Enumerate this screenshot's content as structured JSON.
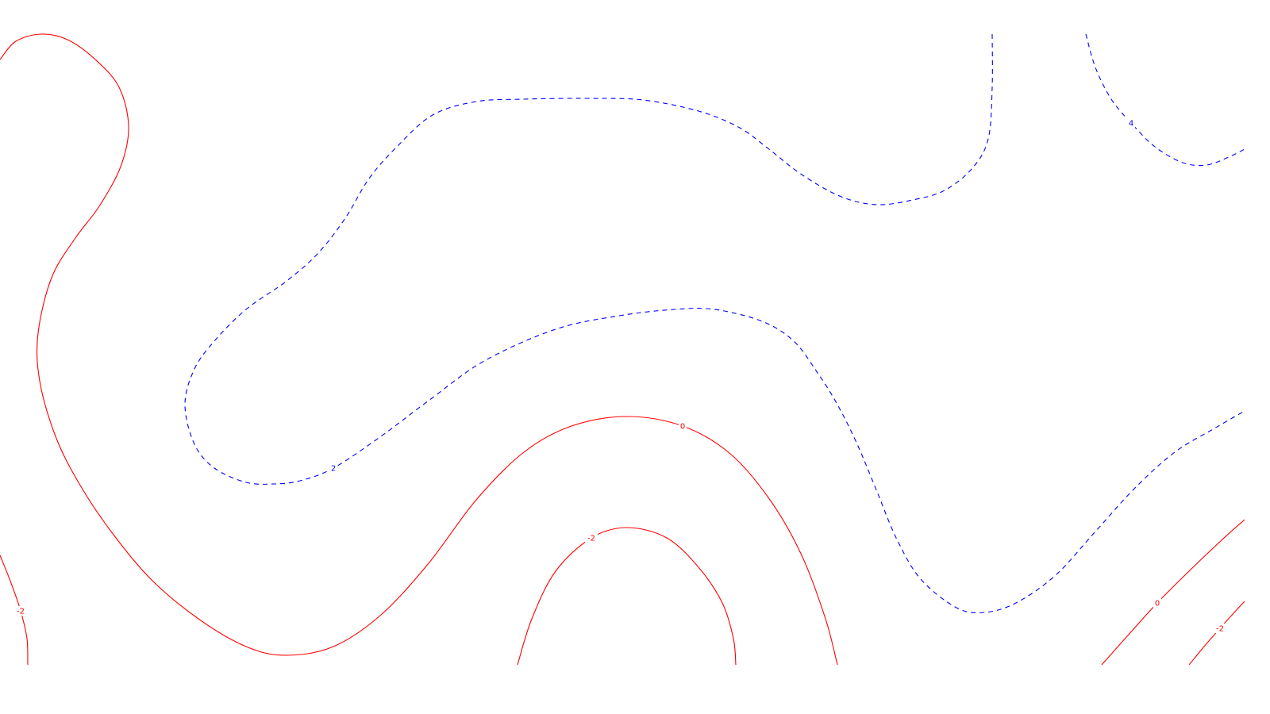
{
  "chart_data": {
    "type": "contour",
    "title": "",
    "xlabel": "",
    "ylabel": "",
    "grid": false,
    "legend": "none",
    "colors": {
      "positive": "#0000ff",
      "negative": "#ff0000"
    },
    "contours": [
      {
        "id": "red-left-0",
        "level": 0,
        "style": "solid",
        "color": "#ff0000",
        "points": [
          [
            0,
            75
          ],
          [
            20,
            52
          ],
          [
            52,
            43
          ],
          [
            85,
            50
          ],
          [
            120,
            75
          ],
          [
            150,
            110
          ],
          [
            162,
            160
          ],
          [
            152,
            210
          ],
          [
            125,
            260
          ],
          [
            95,
            300
          ],
          [
            65,
            350
          ],
          [
            48,
            420
          ],
          [
            50,
            480
          ],
          [
            70,
            550
          ],
          [
            100,
            610
          ],
          [
            140,
            670
          ],
          [
            190,
            730
          ],
          [
            250,
            780
          ],
          [
            310,
            815
          ],
          [
            360,
            826
          ],
          [
            420,
            815
          ],
          [
            480,
            775
          ],
          [
            540,
            710
          ],
          [
            600,
            630
          ],
          [
            660,
            570
          ],
          [
            720,
            537
          ],
          [
            790,
            525
          ],
          [
            860,
            537
          ],
          [
            920,
            572
          ],
          [
            970,
            630
          ],
          [
            1010,
            700
          ],
          [
            1040,
            780
          ],
          [
            1055,
            838
          ]
        ],
        "labels": [
          {
            "text": "0",
            "at": 27
          }
        ]
      },
      {
        "id": "red-left-edge-neg2",
        "level": -2,
        "style": "solid",
        "color": "#ff0000",
        "points": [
          [
            0,
            700
          ],
          [
            14,
            735
          ],
          [
            26,
            770
          ],
          [
            34,
            805
          ],
          [
            35,
            838
          ]
        ],
        "labels": [
          {
            "text": "-2",
            "at": 2
          }
        ]
      },
      {
        "id": "red-bottom-neg2",
        "level": -2,
        "style": "solid",
        "color": "#ff0000",
        "points": [
          [
            652,
            838
          ],
          [
            670,
            780
          ],
          [
            700,
            720
          ],
          [
            745,
            678
          ],
          [
            790,
            665
          ],
          [
            840,
            678
          ],
          [
            880,
            715
          ],
          [
            910,
            760
          ],
          [
            924,
            805
          ],
          [
            927,
            838
          ]
        ],
        "labels": [
          {
            "text": "-2",
            "at": 3
          }
        ]
      },
      {
        "id": "red-right-0",
        "level": 0,
        "style": "solid",
        "color": "#ff0000",
        "points": [
          [
            1388,
            838
          ],
          [
            1420,
            802
          ],
          [
            1458,
            760
          ],
          [
            1500,
            718
          ],
          [
            1540,
            680
          ],
          [
            1568,
            655
          ]
        ],
        "labels": [
          {
            "text": "0",
            "at": 2
          }
        ]
      },
      {
        "id": "red-right-neg2",
        "level": -2,
        "style": "solid",
        "color": "#ff0000",
        "points": [
          [
            1498,
            838
          ],
          [
            1517,
            815
          ],
          [
            1537,
            792
          ],
          [
            1555,
            772
          ],
          [
            1568,
            758
          ]
        ],
        "labels": [
          {
            "text": "-2",
            "at": 2
          }
        ]
      },
      {
        "id": "blue-upper-2",
        "level": 2,
        "style": "dashed",
        "color": "#0000ff",
        "points": [
          [
            1250,
            43
          ],
          [
            1250,
            110
          ],
          [
            1245,
            175
          ],
          [
            1225,
            212
          ],
          [
            1190,
            240
          ],
          [
            1150,
            252
          ],
          [
            1105,
            258
          ],
          [
            1060,
            248
          ],
          [
            1010,
            220
          ],
          [
            965,
            185
          ],
          [
            930,
            160
          ],
          [
            880,
            140
          ],
          [
            810,
            126
          ],
          [
            740,
            124
          ],
          [
            660,
            125
          ],
          [
            600,
            128
          ],
          [
            545,
            145
          ],
          [
            500,
            185
          ],
          [
            465,
            225
          ],
          [
            435,
            275
          ],
          [
            400,
            320
          ],
          [
            360,
            355
          ],
          [
            310,
            390
          ],
          [
            270,
            430
          ],
          [
            245,
            465
          ],
          [
            233,
            510
          ],
          [
            245,
            560
          ],
          [
            270,
            590
          ],
          [
            310,
            608
          ],
          [
            345,
            610
          ],
          [
            378,
            606
          ],
          [
            420,
            590
          ],
          [
            480,
            550
          ],
          [
            540,
            505
          ],
          [
            610,
            455
          ],
          [
            700,
            415
          ],
          [
            780,
            398
          ],
          [
            850,
            390
          ],
          [
            900,
            390
          ],
          [
            960,
            405
          ],
          [
            1000,
            430
          ],
          [
            1030,
            470
          ],
          [
            1055,
            510
          ],
          [
            1080,
            560
          ],
          [
            1105,
            620
          ],
          [
            1130,
            680
          ],
          [
            1160,
            730
          ],
          [
            1205,
            766
          ],
          [
            1240,
            772
          ],
          [
            1280,
            760
          ],
          [
            1330,
            725
          ],
          [
            1380,
            670
          ],
          [
            1430,
            615
          ],
          [
            1480,
            570
          ],
          [
            1530,
            540
          ],
          [
            1568,
            518
          ]
        ],
        "labels": [
          {
            "text": "2",
            "at": 31
          }
        ]
      },
      {
        "id": "blue-corner-4",
        "level": 4,
        "style": "dashed",
        "color": "#0000ff",
        "points": [
          [
            1368,
            43
          ],
          [
            1380,
            85
          ],
          [
            1400,
            125
          ],
          [
            1425,
            155
          ],
          [
            1455,
            185
          ],
          [
            1490,
            205
          ],
          [
            1520,
            208
          ],
          [
            1548,
            198
          ],
          [
            1568,
            188
          ]
        ],
        "labels": [
          {
            "text": "4",
            "at": 3
          }
        ]
      }
    ]
  }
}
